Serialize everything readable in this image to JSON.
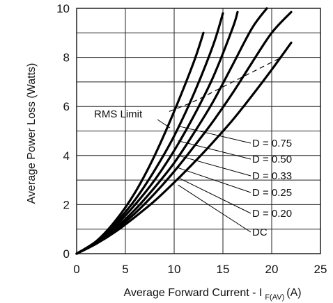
{
  "chart_data": {
    "type": "line",
    "title": "",
    "xlabel": "Average Forward Current - I",
    "xlabel_subscript": "F(AV)",
    "xlabel_unit": "(A)",
    "ylabel": "Average Power Loss (Watts)",
    "xlim": [
      0,
      25
    ],
    "ylim": [
      0,
      10
    ],
    "x_ticks": [
      "0",
      "5",
      "10",
      "15",
      "20",
      "25"
    ],
    "y_ticks": [
      "0",
      "2",
      "4",
      "6",
      "8",
      "10"
    ],
    "grid": true,
    "series": [
      {
        "name": "D = 0.75",
        "x": [
          0,
          2,
          4,
          6,
          8,
          10,
          12,
          13
        ],
        "y": [
          0,
          0.5,
          1.35,
          2.5,
          4.0,
          5.8,
          7.8,
          9.0
        ]
      },
      {
        "name": "D = 0.50",
        "x": [
          0,
          2,
          4,
          6,
          8,
          10,
          12,
          14,
          15
        ],
        "y": [
          0,
          0.5,
          1.25,
          2.2,
          3.4,
          4.8,
          6.5,
          8.5,
          9.8
        ]
      },
      {
        "name": "D = 0.33",
        "x": [
          0,
          2,
          4,
          6,
          8,
          10,
          12,
          14,
          16,
          16.5
        ],
        "y": [
          0,
          0.45,
          1.15,
          2.0,
          3.0,
          4.2,
          5.6,
          7.2,
          9.2,
          9.85
        ]
      },
      {
        "name": "D = 0.25",
        "x": [
          0,
          2,
          4,
          6,
          8,
          10,
          12,
          14,
          16,
          18,
          19.5
        ],
        "y": [
          0,
          0.45,
          1.05,
          1.8,
          2.7,
          3.7,
          4.9,
          6.2,
          7.7,
          9.2,
          10.0
        ]
      },
      {
        "name": "D = 0.20",
        "x": [
          0,
          2,
          4,
          6,
          8,
          10,
          12,
          14,
          16,
          18,
          20,
          22
        ],
        "y": [
          0,
          0.42,
          0.98,
          1.65,
          2.45,
          3.35,
          4.35,
          5.4,
          6.55,
          7.8,
          9.0,
          9.85
        ]
      },
      {
        "name": "DC",
        "x": [
          0,
          2,
          4,
          6,
          8,
          10,
          12,
          14,
          16,
          18,
          20,
          22
        ],
        "y": [
          0,
          0.4,
          0.9,
          1.5,
          2.15,
          2.9,
          3.7,
          4.55,
          5.45,
          6.45,
          7.5,
          8.6
        ]
      }
    ],
    "rms_limit": {
      "label": "RMS Limit",
      "x": [
        9.5,
        12,
        15,
        18,
        21
      ],
      "y": [
        5.8,
        6.2,
        6.8,
        7.4,
        8.0
      ]
    }
  }
}
